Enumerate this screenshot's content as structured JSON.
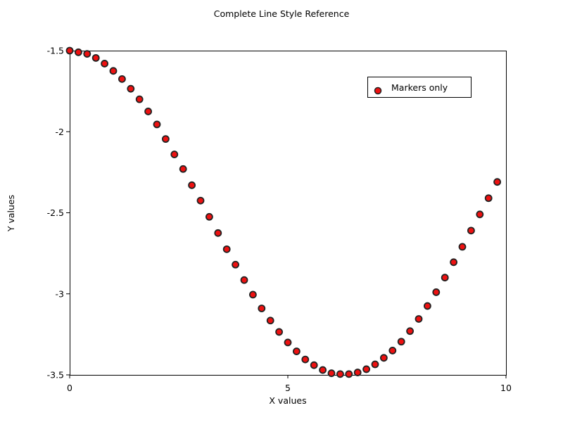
{
  "chart_data": {
    "type": "scatter",
    "title": "Complete Line Style Reference",
    "xlabel": "X values",
    "ylabel": "Y values",
    "xlim": [
      0,
      10
    ],
    "ylim": [
      -3.5,
      -1.5
    ],
    "xticks": [
      0,
      5,
      10
    ],
    "xtick_labels": [
      "0",
      "5",
      "10"
    ],
    "yticks": [
      -1.5,
      -2,
      -2.5,
      -3,
      -3.5
    ],
    "ytick_labels": [
      "-1.5",
      "-2",
      "-2.5",
      "-3",
      "-3.5"
    ],
    "grid": false,
    "legend_position": "top-right",
    "series": [
      {
        "name": "Markers only",
        "marker_fill": "#ee1111",
        "marker_edge": "#222222",
        "x": [
          0,
          0.2,
          0.4,
          0.6,
          0.8,
          1.0,
          1.2,
          1.4,
          1.6,
          1.8,
          2.0,
          2.2,
          2.4,
          2.6,
          2.8,
          3.0,
          3.2,
          3.4,
          3.6,
          3.8,
          4.0,
          4.2,
          4.4,
          4.6,
          4.8,
          5.0,
          5.2,
          5.4,
          5.6,
          5.8,
          6.0,
          6.2,
          6.4,
          6.6,
          6.8,
          7.0,
          7.2,
          7.4,
          7.6,
          7.8,
          8.0,
          8.2,
          8.4,
          8.6,
          8.8,
          9.0,
          9.2,
          9.4,
          9.6,
          9.8
        ],
        "y": [
          -1.5,
          -1.51,
          -1.52,
          -1.545,
          -1.58,
          -1.625,
          -1.675,
          -1.735,
          -1.8,
          -1.875,
          -1.955,
          -2.045,
          -2.14,
          -2.23,
          -2.33,
          -2.425,
          -2.525,
          -2.625,
          -2.725,
          -2.82,
          -2.915,
          -3.005,
          -3.09,
          -3.165,
          -3.235,
          -3.3,
          -3.355,
          -3.405,
          -3.44,
          -3.47,
          -3.49,
          -3.495,
          -3.495,
          -3.485,
          -3.465,
          -3.435,
          -3.395,
          -3.35,
          -3.295,
          -3.23,
          -3.155,
          -3.075,
          -2.99,
          -2.9,
          -2.805,
          -2.71,
          -2.61,
          -2.51,
          -2.41,
          -2.31
        ]
      }
    ]
  }
}
